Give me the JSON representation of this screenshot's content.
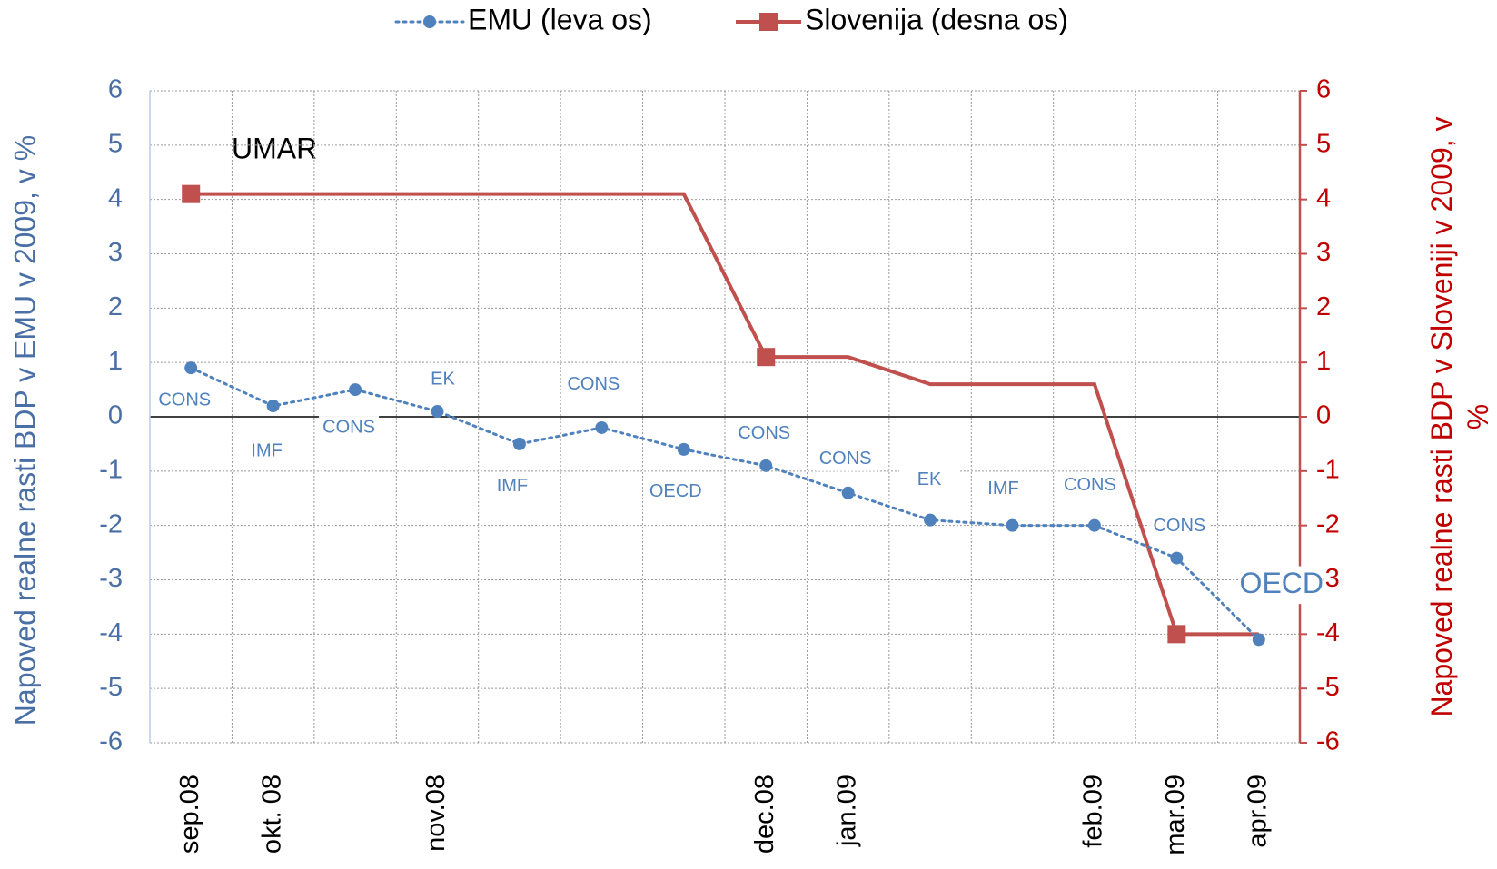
{
  "chart_data": {
    "type": "line",
    "annotation": "UMAR",
    "categories": [
      "sep.08",
      "okt. 08",
      null,
      "nov.08",
      null,
      null,
      null,
      "dec.08",
      "jan.09",
      null,
      null,
      "feb.09",
      "mar.09",
      "apr.09"
    ],
    "series": [
      {
        "name": "EMU (leva os)",
        "color": "#4f81bd",
        "axis": "y",
        "values": [
          0.9,
          0.2,
          0.5,
          0.1,
          -0.5,
          -0.2,
          -0.6,
          -0.9,
          -1.4,
          -1.9,
          -2.0,
          -2.0,
          -2.6,
          -4.1
        ],
        "point_labels": [
          "CONS",
          "IMF",
          "CONS",
          "EK",
          "IMF",
          "CONS",
          "OECD",
          "CONS",
          "CONS",
          "EK",
          "IMF",
          "CONS",
          "CONS",
          "OECD"
        ]
      },
      {
        "name": "Slovenija (desna os)",
        "color": "#c0504d",
        "axis": "y2",
        "values": [
          4.1,
          4.1,
          4.1,
          4.1,
          4.1,
          4.1,
          4.1,
          1.1,
          1.1,
          0.6,
          0.6,
          0.6,
          -4.0,
          -4.0
        ],
        "marker_indices": [
          0,
          7,
          12
        ]
      }
    ],
    "ylabel": "Napoved realne rasti BDP v EMU v 2009, v %",
    "y2label": "Napoved realne rasti BDP v Sloveniji v 2009, v %",
    "ylim": [
      -6,
      6
    ],
    "yticks": [
      -6,
      -5,
      -4,
      -3,
      -2,
      -1,
      0,
      1,
      2,
      3,
      4,
      5,
      6
    ],
    "y2lim": [
      -6,
      6
    ],
    "y2ticks": [
      -6,
      -5,
      -4,
      -3,
      -2,
      -1,
      0,
      1,
      2,
      3,
      4,
      5,
      6
    ],
    "grid": true,
    "legend": "top"
  }
}
